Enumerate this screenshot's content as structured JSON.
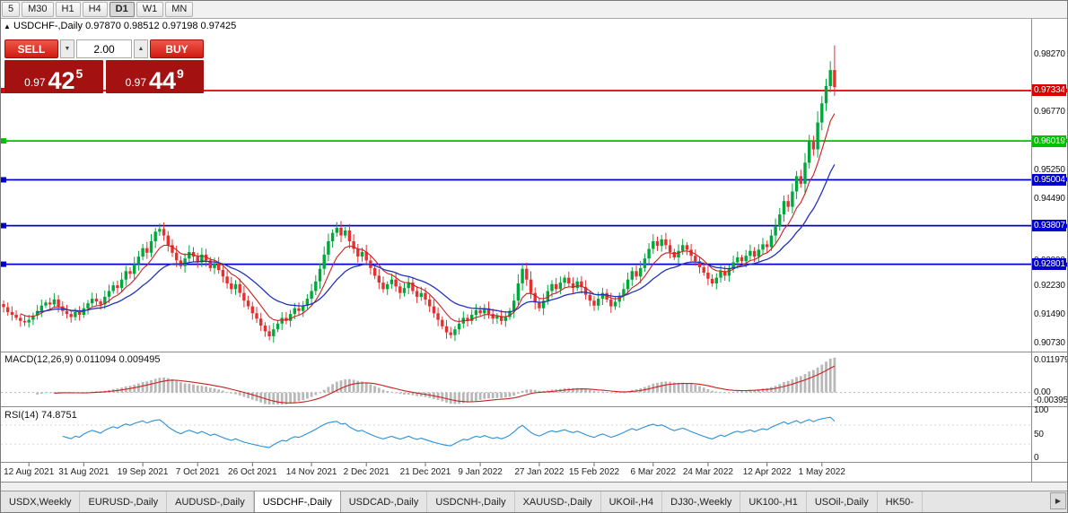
{
  "toolbar": {
    "timeframes": [
      "5",
      "M30",
      "H1",
      "H4",
      "D1",
      "W1",
      "MN"
    ],
    "active_timeframe": "D1"
  },
  "chart_header": {
    "collapse_icon": "▲",
    "symbol": "USDCHF-,Daily",
    "ohlc": "0.97870 0.98512 0.97198 0.97425"
  },
  "trade_panel": {
    "sell_label": "SELL",
    "buy_label": "BUY",
    "volume": "2.00",
    "spinner_down": "▼",
    "spinner_up": "▲",
    "sell_price": {
      "prefix": "0.97",
      "big": "42",
      "sup": "5"
    },
    "buy_price": {
      "prefix": "0.97",
      "big": "44",
      "sup": "9"
    }
  },
  "price_axis": {
    "ticks": [
      {
        "label": "0.98270",
        "price": 0.9827
      },
      {
        "label": "0.96770",
        "price": 0.9677
      },
      {
        "label": "0.95250",
        "price": 0.9525
      },
      {
        "label": "0.94490",
        "price": 0.9449
      },
      {
        "label": "0.92890",
        "price": 0.9289
      },
      {
        "label": "0.92230",
        "price": 0.9223
      },
      {
        "label": "0.91490",
        "price": 0.9149
      },
      {
        "label": "0.90730",
        "price": 0.9073
      }
    ],
    "badges": [
      {
        "value": "0.97334",
        "price": 0.97334,
        "color": "#e00000"
      },
      {
        "value": "0.96019",
        "price": 0.96019,
        "color": "#00c000"
      },
      {
        "value": "0.95004",
        "price": 0.95004,
        "color": "#0000d0"
      },
      {
        "value": "0.93807",
        "price": 0.93807,
        "color": "#0000d0"
      },
      {
        "value": "0.92801",
        "price": 0.92801,
        "color": "#0000d0"
      }
    ]
  },
  "macd_panel": {
    "label": "MACD(12,26,9) 0.011094 0.009495",
    "axis_top": "0.011979",
    "axis_zero": "0.00",
    "axis_bottom": "-0.00395"
  },
  "rsi_panel": {
    "label": "RSI(14) 74.8751",
    "axis_top": "100",
    "axis_mid": "50",
    "axis_bottom": "0"
  },
  "time_axis": [
    {
      "label": "12 Aug 2021",
      "i": 6
    },
    {
      "label": "31 Aug 2021",
      "i": 19
    },
    {
      "label": "19 Sep 2021",
      "i": 33
    },
    {
      "label": "7 Oct 2021",
      "i": 46
    },
    {
      "label": "26 Oct 2021",
      "i": 59
    },
    {
      "label": "14 Nov 2021",
      "i": 73
    },
    {
      "label": "2 Dec 2021",
      "i": 86
    },
    {
      "label": "21 Dec 2021",
      "i": 100
    },
    {
      "label": "9 Jan 2022",
      "i": 113
    },
    {
      "label": "27 Jan 2022",
      "i": 127
    },
    {
      "label": "15 Feb 2022",
      "i": 140
    },
    {
      "label": "6 Mar 2022",
      "i": 154
    },
    {
      "label": "24 Mar 2022",
      "i": 167
    },
    {
      "label": "12 Apr 2022",
      "i": 181
    },
    {
      "label": "1 May 2022",
      "i": 194
    }
  ],
  "tabs": {
    "items": [
      "USDX,Weekly",
      "EURUSD-,Daily",
      "AUDUSD-,Daily",
      "USDCHF-,Daily",
      "USDCAD-,Daily",
      "USDCNH-,Daily",
      "XAUUSD-,Daily",
      "UKOil-,H4",
      "DJ30-,Weekly",
      "UK100-,H1",
      "USOil-,Daily",
      "HK50-"
    ],
    "active": "USDCHF-,Daily",
    "scroll_right": "▶"
  },
  "chart_data": {
    "type": "candlestick",
    "symbol": "USDCHF-",
    "timeframe": "Daily",
    "price_range": [
      0.9052,
      0.9923
    ],
    "closes": [
      0.9168,
      0.9155,
      0.9148,
      0.914,
      0.9132,
      0.9128,
      0.9135,
      0.9146,
      0.9158,
      0.9172,
      0.918,
      0.9175,
      0.9188,
      0.917,
      0.9158,
      0.915,
      0.9142,
      0.9155,
      0.9148,
      0.9165,
      0.9178,
      0.919,
      0.9183,
      0.9175,
      0.9195,
      0.921,
      0.9225,
      0.9218,
      0.924,
      0.9262,
      0.9255,
      0.928,
      0.93,
      0.9322,
      0.931,
      0.934,
      0.9365,
      0.9372,
      0.9355,
      0.933,
      0.931,
      0.929,
      0.9275,
      0.9295,
      0.9312,
      0.93,
      0.9285,
      0.9305,
      0.929,
      0.927,
      0.9282,
      0.9265,
      0.9248,
      0.923,
      0.9215,
      0.9228,
      0.9205,
      0.9185,
      0.917,
      0.9152,
      0.9138,
      0.912,
      0.9105,
      0.9092,
      0.911,
      0.9125,
      0.914,
      0.9132,
      0.915,
      0.9165,
      0.9158,
      0.9172,
      0.919,
      0.921,
      0.9235,
      0.9268,
      0.9305,
      0.934,
      0.9362,
      0.9375,
      0.9355,
      0.9368,
      0.934,
      0.932,
      0.93,
      0.9312,
      0.929,
      0.927,
      0.925,
      0.9232,
      0.9215,
      0.9228,
      0.924,
      0.9222,
      0.9205,
      0.9218,
      0.9232,
      0.921,
      0.9195,
      0.9205,
      0.9188,
      0.917,
      0.9152,
      0.9135,
      0.9118,
      0.9102,
      0.9095,
      0.911,
      0.9125,
      0.914,
      0.9132,
      0.9148,
      0.916,
      0.9152,
      0.9165,
      0.915,
      0.9138,
      0.9145,
      0.9132,
      0.9142,
      0.9158,
      0.9185,
      0.923,
      0.9268,
      0.924,
      0.9205,
      0.918,
      0.9165,
      0.9185,
      0.921,
      0.9228,
      0.9215,
      0.9232,
      0.9245,
      0.923,
      0.9218,
      0.9235,
      0.922,
      0.92,
      0.9185,
      0.9172,
      0.919,
      0.9205,
      0.9188,
      0.917,
      0.9182,
      0.9198,
      0.9215,
      0.924,
      0.9262,
      0.9248,
      0.927,
      0.9295,
      0.932,
      0.934,
      0.9328,
      0.9345,
      0.933,
      0.9312,
      0.9298,
      0.9315,
      0.933,
      0.9318,
      0.9302,
      0.9288,
      0.9272,
      0.9258,
      0.9242,
      0.923,
      0.9245,
      0.9262,
      0.925,
      0.9268,
      0.9285,
      0.9298,
      0.9288,
      0.9302,
      0.9315,
      0.93,
      0.9318,
      0.9332,
      0.9325,
      0.9355,
      0.938,
      0.941,
      0.9445,
      0.943,
      0.947,
      0.951,
      0.949,
      0.9545,
      0.96,
      0.958,
      0.965,
      0.97,
      0.9745,
      0.9787,
      0.97425
    ],
    "last_candle": [
      0.9787,
      0.98512,
      0.97198,
      0.97425
    ],
    "hlines": [
      {
        "price": 0.97334,
        "color": "#e00000"
      },
      {
        "price": 0.96019,
        "color": "#00c000"
      },
      {
        "price": 0.95004,
        "color": "#0000c8"
      },
      {
        "price": 0.93807,
        "color": "#0000c8"
      },
      {
        "price": 0.92801,
        "color": "#0000c8"
      }
    ],
    "ma_fast_period": 8,
    "ma_slow_period": 21,
    "macd": {
      "fast": 12,
      "slow": 26,
      "signal": 9,
      "range": [
        -0.00395,
        0.011979
      ]
    },
    "rsi": {
      "period": 14,
      "levels": [
        30,
        70
      ]
    },
    "colors": {
      "up": "#00a83c",
      "down": "#e63030",
      "ma_fast": "#c92020",
      "ma_slow": "#2233bb",
      "macd_hist": "#b8b8b8",
      "macd_signal": "#c92020",
      "rsi": "#2a8fd8",
      "grid": "#8c8c8c"
    }
  }
}
